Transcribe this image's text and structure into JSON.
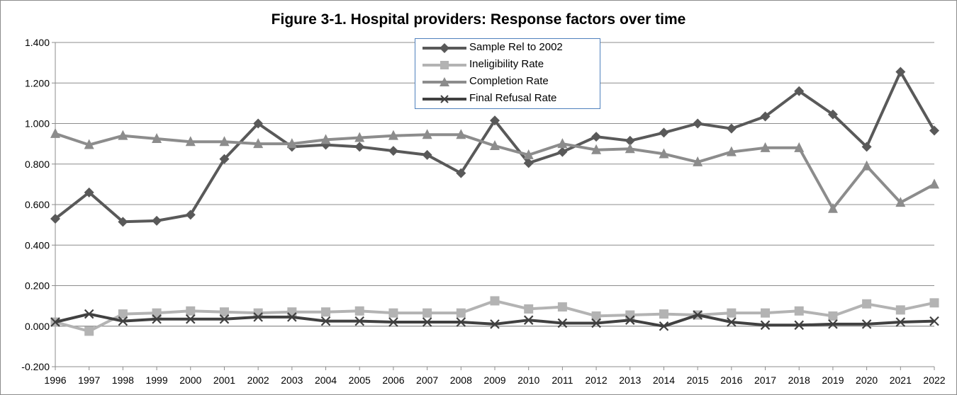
{
  "chart_data": {
    "type": "line",
    "title": "Figure 3-1.  Hospital providers: Response factors over time",
    "xlabel": "",
    "ylabel": "",
    "x": [
      "1996",
      "1997",
      "1998",
      "1999",
      "2000",
      "2001",
      "2002",
      "2003",
      "2004",
      "2005",
      "2006",
      "2007",
      "2008",
      "2009",
      "2010",
      "2011",
      "2012",
      "2013",
      "2014",
      "2015",
      "2016",
      "2017",
      "2018",
      "2019",
      "2020",
      "2021",
      "2022"
    ],
    "ylim": [
      -0.2,
      1.4
    ],
    "yticks": [
      "-0.200",
      "0.000",
      "0.200",
      "0.400",
      "0.600",
      "0.800",
      "1.000",
      "1.200",
      "1.400"
    ],
    "grid": "horizontal",
    "legend_position": "top-center",
    "series": [
      {
        "name": "Sample Rel to 2002",
        "marker": "diamond",
        "color": "#595959",
        "values": [
          0.53,
          0.66,
          0.515,
          0.52,
          0.55,
          0.825,
          1.0,
          0.885,
          0.895,
          0.885,
          0.865,
          0.845,
          0.755,
          1.015,
          0.805,
          0.86,
          0.935,
          0.915,
          0.955,
          1.0,
          0.975,
          1.035,
          1.16,
          1.045,
          0.885,
          1.255,
          0.965
        ]
      },
      {
        "name": "Ineligibility Rate",
        "marker": "square",
        "color": "#b3b3b3",
        "values": [
          0.02,
          -0.025,
          0.06,
          0.065,
          0.075,
          0.07,
          0.065,
          0.07,
          0.07,
          0.075,
          0.065,
          0.065,
          0.065,
          0.125,
          0.085,
          0.095,
          0.05,
          0.055,
          0.06,
          0.055,
          0.065,
          0.065,
          0.075,
          0.05,
          0.11,
          0.08,
          0.115
        ]
      },
      {
        "name": "Completion Rate",
        "marker": "triangle",
        "color": "#8c8c8c",
        "values": [
          0.95,
          0.895,
          0.94,
          0.925,
          0.91,
          0.91,
          0.9,
          0.9,
          0.92,
          0.93,
          0.94,
          0.945,
          0.945,
          0.89,
          0.845,
          0.9,
          0.87,
          0.875,
          0.85,
          0.81,
          0.86,
          0.88,
          0.88,
          0.58,
          0.79,
          0.61,
          0.7
        ]
      },
      {
        "name": "Final Refusal Rate",
        "marker": "x",
        "color": "#404040",
        "values": [
          0.02,
          0.06,
          0.025,
          0.035,
          0.035,
          0.035,
          0.045,
          0.045,
          0.025,
          0.025,
          0.02,
          0.02,
          0.02,
          0.01,
          0.03,
          0.015,
          0.015,
          0.03,
          0.0,
          0.055,
          0.02,
          0.005,
          0.005,
          0.01,
          0.01,
          0.02,
          0.025
        ]
      }
    ]
  }
}
